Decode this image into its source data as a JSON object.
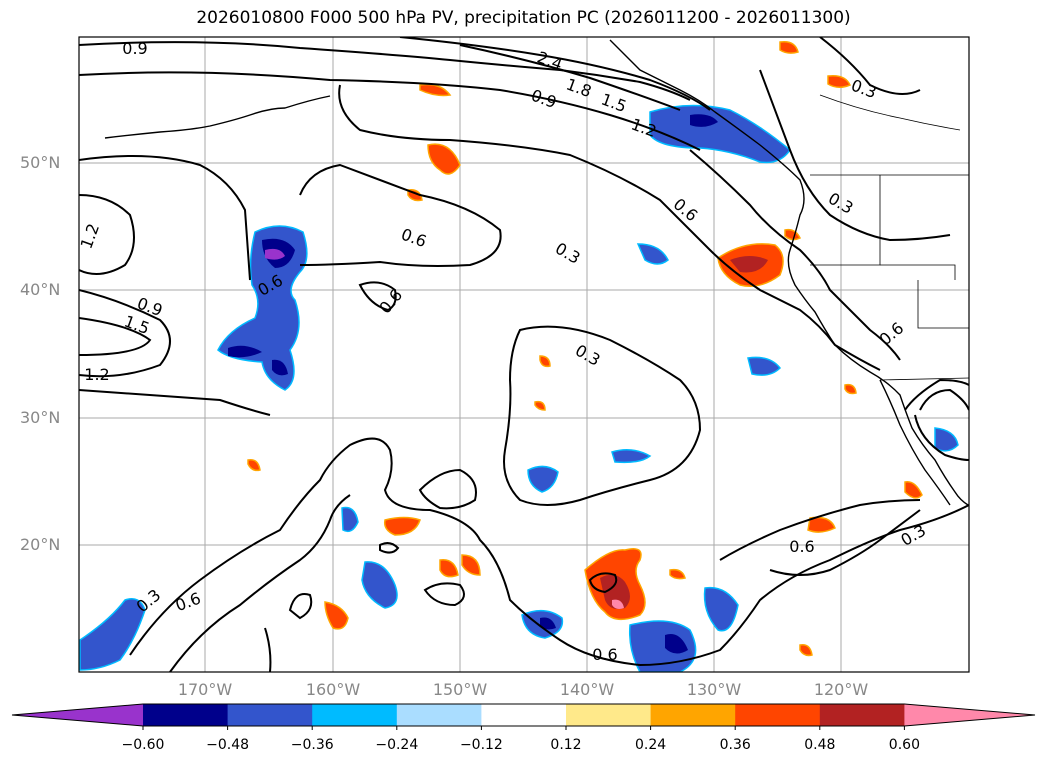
{
  "title": "2026010800 F000 500 hPa PV, precipitation PC (2026011200 - 2026011300)",
  "lat_labels": [
    "50°N",
    "40°N",
    "30°N",
    "20°N"
  ],
  "lon_labels": [
    "170°W",
    "160°W",
    "150°W",
    "140°W",
    "130°W",
    "120°W"
  ],
  "colorbar": {
    "ticks": [
      "−0.60",
      "−0.48",
      "−0.36",
      "−0.24",
      "−0.12",
      "0.12",
      "0.24",
      "0.36",
      "0.48",
      "0.60"
    ],
    "colors": [
      "#9933cc",
      "#00008b",
      "#3355cc",
      "#00bbff",
      "#aaddff",
      "#ffffff",
      "#ffe98a",
      "#ffa500",
      "#ff4500",
      "#b22222",
      "#ff88aa"
    ]
  },
  "contour_labels": [
    "0.9",
    "2.4",
    "1.8",
    "1.5",
    "0.9",
    "1.2",
    "0.3",
    "0.3",
    "0.6",
    "1.2",
    "0.6",
    "0.3",
    "0.6",
    "0.9",
    "1.5",
    "0.6",
    "1.2",
    "0.3",
    "0.6",
    "0.3",
    "0.6",
    "0.3",
    "0.6",
    "0.6"
  ]
}
